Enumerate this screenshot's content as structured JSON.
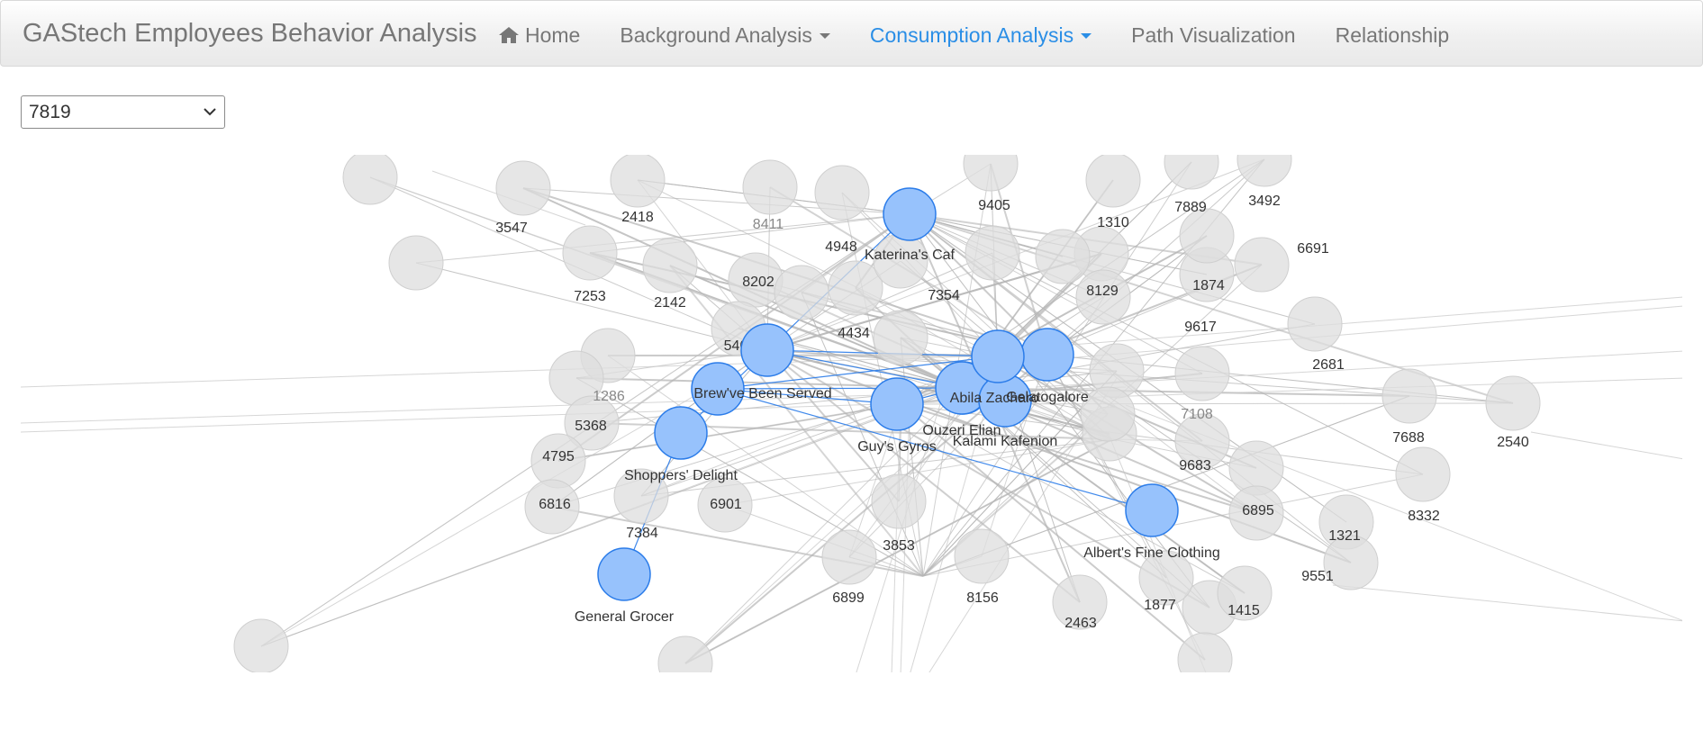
{
  "brand": "GAStech Employees Behavior Analysis",
  "nav": [
    {
      "label": "Home",
      "icon": "home-icon",
      "active": false,
      "dropdown": false
    },
    {
      "label": "Background Analysis",
      "active": false,
      "dropdown": true
    },
    {
      "label": "Consumption Analysis",
      "active": true,
      "dropdown": true
    },
    {
      "label": "Path Visualization",
      "active": false,
      "dropdown": false
    },
    {
      "label": "Relationship",
      "active": false,
      "dropdown": false
    }
  ],
  "colors": {
    "accent": "#2a8ee6",
    "highlight_node": "#97c2fc",
    "highlight_stroke": "#2b7ce9",
    "card_node": "#dddddd"
  },
  "selector": {
    "value": "7819"
  },
  "graph": {
    "selected_card": "7819",
    "highlighted_nodes": [
      {
        "id": "Katerina's Caf",
        "label": "Katerina's Caf"
      },
      {
        "id": "Brew've Been Served",
        "label": "Brew've Been Served"
      },
      {
        "id": "Coffee Node A",
        "label": ""
      },
      {
        "id": "Shoppers' Delight",
        "label": "Shoppers' Delight"
      },
      {
        "id": "General Grocer",
        "label": "General Grocer"
      },
      {
        "id": "Guy's Gyros",
        "label": "Guy's Gyros"
      },
      {
        "id": "Abila Zacharo",
        "label": "Abila Zacharo"
      },
      {
        "id": "Ouzeri Elian",
        "label": "Ouzeri Elian"
      },
      {
        "id": "Kalami Kafenion",
        "label": "Kalami Kafenion"
      },
      {
        "id": "Gelatogalore",
        "label": "Gelatogalore"
      },
      {
        "id": "Coffee Node B",
        "label": ""
      },
      {
        "id": "Albert's Fine Clothing",
        "label": "Albert's Fine Clothing"
      }
    ],
    "card_nodes": [
      "3547",
      "2418",
      "8411",
      "4948",
      "9405",
      "1310",
      "7889",
      "3492",
      "6691",
      "7253",
      "2142",
      "8202",
      "7354",
      "8129",
      "1874",
      "9617",
      "2681",
      "5407",
      "4434",
      "1286",
      "5368",
      "4795",
      "6816",
      "7108",
      "7688",
      "2540",
      "9683",
      "8332",
      "6901",
      "7384",
      "3853",
      "6895",
      "1321",
      "9551",
      "6899",
      "8156",
      "2463",
      "1877",
      "1415"
    ]
  }
}
